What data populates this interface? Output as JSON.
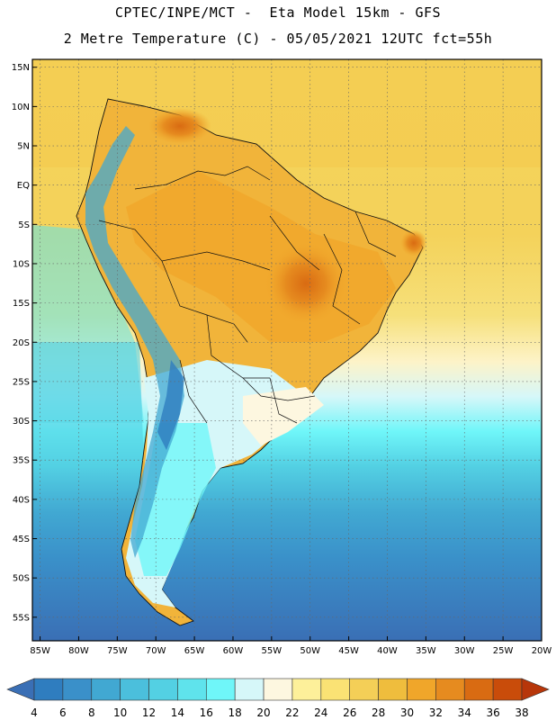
{
  "header": {
    "line1": "CPTEC/INPE/MCT -  Eta Model 15km - GFS",
    "line2": "2 Metre Temperature (C) - 05/05/2021 12UTC fct=55h"
  },
  "map": {
    "lat_labels": [
      "15N",
      "10N",
      "5N",
      "EQ",
      "5S",
      "10S",
      "15S",
      "20S",
      "25S",
      "30S",
      "35S",
      "40S",
      "45S",
      "50S",
      "55S"
    ],
    "lon_labels": [
      "85W",
      "80W",
      "75W",
      "70W",
      "65W",
      "60W",
      "55W",
      "50W",
      "45W",
      "40W",
      "35W",
      "30W",
      "25W",
      "20W"
    ],
    "extent": {
      "lon": [
        -86,
        -20
      ],
      "lat": [
        -58,
        16
      ]
    }
  },
  "colorbar": {
    "labels": [
      "4",
      "6",
      "8",
      "10",
      "12",
      "14",
      "16",
      "18",
      "20",
      "22",
      "24",
      "26",
      "28",
      "30",
      "32",
      "34",
      "36",
      "38"
    ],
    "colors": [
      "#3a6fb5",
      "#2f7dbf",
      "#3a90c9",
      "#41a8d2",
      "#4bbfdc",
      "#53d0e3",
      "#5fe3ec",
      "#6ff6f9",
      "#d6f7f9",
      "#fdf7e0",
      "#fdf09a",
      "#fae274",
      "#f4cf57",
      "#efbd3d",
      "#f0a62a",
      "#e68b1f",
      "#d96b12",
      "#c94c0a",
      "#b7360a"
    ]
  }
}
